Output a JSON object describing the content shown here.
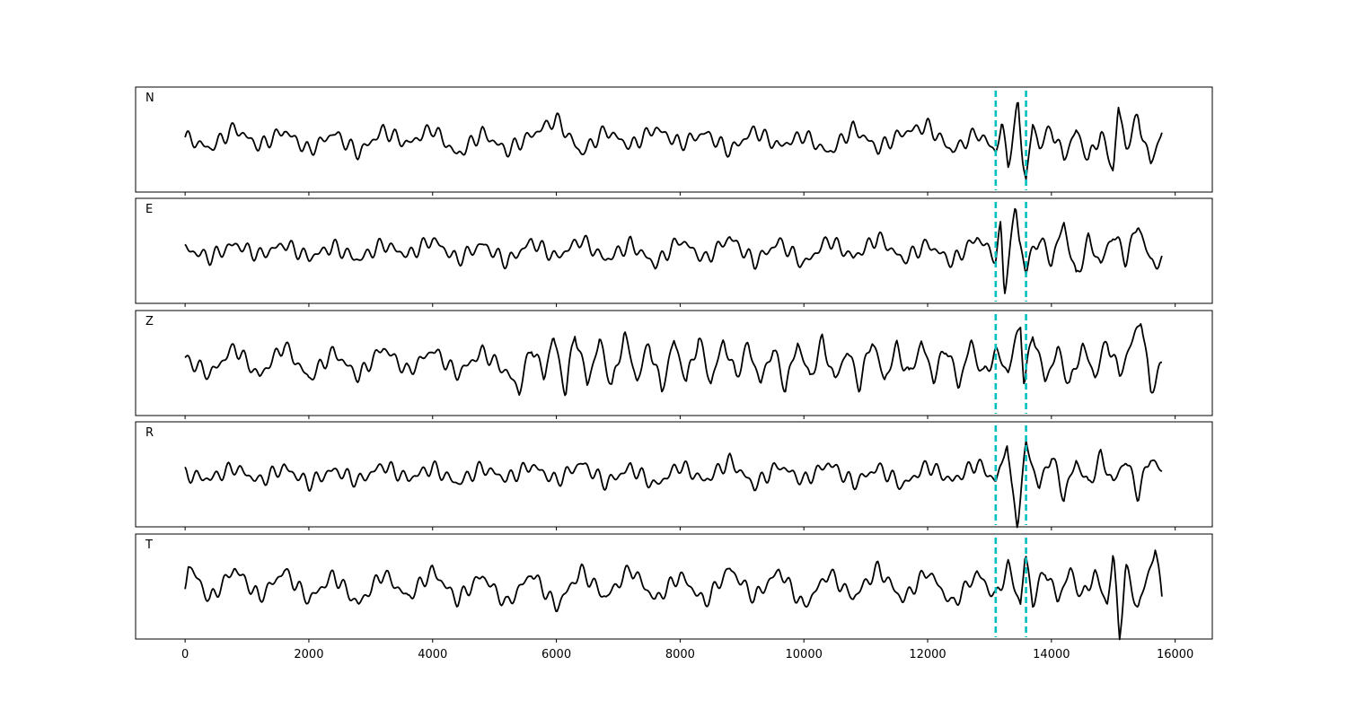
{
  "chart_data": {
    "type": "line",
    "title": "",
    "xlabel": "",
    "ylabel": "",
    "xlim": [
      -800,
      16600
    ],
    "x_ticks": [
      0,
      2000,
      4000,
      6000,
      8000,
      10000,
      12000,
      14000,
      16000
    ],
    "x_tick_labels": [
      "0",
      "2000",
      "4000",
      "6000",
      "8000",
      "10000",
      "12000",
      "14000",
      "16000"
    ],
    "y_ticks_shown": false,
    "grid": false,
    "line_color": "#000000",
    "marker_color": "#00bfbf",
    "markers": [
      {
        "x": 13100,
        "style": "dashed"
      },
      {
        "x": 13590,
        "style": "dashed"
      }
    ],
    "sample_count": 15800,
    "panels": [
      {
        "label": "N",
        "ylim": [
          -2.3,
          2.3
        ],
        "x": [
          0,
          400,
          800,
          1200,
          1600,
          2000,
          2400,
          2800,
          3200,
          3600,
          4000,
          4400,
          4800,
          5200,
          5600,
          6000,
          6400,
          6800,
          7200,
          7600,
          8000,
          8400,
          8800,
          9200,
          9600,
          10000,
          10400,
          10800,
          11200,
          11600,
          12000,
          12400,
          12800,
          13100,
          13200,
          13300,
          13400,
          13460,
          13540,
          13590,
          13700,
          13800,
          14000,
          14200,
          14400,
          14600,
          14800,
          15000,
          15080,
          15200,
          15400,
          15600,
          15800
        ],
        "y": [
          0.1,
          -0.4,
          0.5,
          -0.3,
          0.4,
          -0.5,
          0.3,
          -0.6,
          0.4,
          -0.2,
          0.5,
          -0.7,
          0.3,
          -0.5,
          0.2,
          0.9,
          -0.6,
          0.4,
          -0.3,
          0.5,
          -0.2,
          0.3,
          -0.5,
          0.4,
          -0.3,
          0.2,
          -0.6,
          0.5,
          -0.4,
          0.3,
          0.6,
          -0.5,
          0.3,
          -0.5,
          0.6,
          -1.0,
          0.4,
          1.6,
          -0.9,
          -1.8,
          0.7,
          -0.3,
          0.5,
          -0.8,
          0.4,
          -0.9,
          0.3,
          -1.4,
          1.5,
          -0.4,
          1.0,
          -1.1,
          0.5
        ]
      },
      {
        "label": "E",
        "ylim": [
          -2.3,
          2.3
        ],
        "x": [
          0,
          400,
          800,
          1200,
          1600,
          2000,
          2400,
          2800,
          3200,
          3600,
          4000,
          4400,
          4800,
          5200,
          5600,
          6000,
          6400,
          6800,
          7200,
          7600,
          8000,
          8400,
          8800,
          9200,
          9600,
          10000,
          10400,
          10800,
          11200,
          11600,
          12000,
          12400,
          12800,
          13100,
          13180,
          13240,
          13300,
          13420,
          13480,
          13590,
          13640,
          13800,
          14000,
          14200,
          14400,
          14600,
          14800,
          15000,
          15200,
          15400,
          15600,
          15800
        ],
        "y": [
          0.1,
          -0.3,
          0.3,
          -0.2,
          0.3,
          -0.3,
          0.2,
          -0.4,
          0.3,
          -0.2,
          0.5,
          -0.4,
          0.3,
          -0.5,
          0.4,
          -0.3,
          0.5,
          -0.4,
          0.3,
          -0.6,
          0.5,
          -0.4,
          0.6,
          -0.5,
          0.4,
          -0.6,
          0.5,
          -0.3,
          0.6,
          -0.4,
          0.3,
          -0.5,
          0.6,
          -0.3,
          1.0,
          -1.8,
          -0.5,
          2.0,
          0.5,
          -0.9,
          -0.4,
          0.6,
          -0.5,
          1.2,
          -1.2,
          0.5,
          -0.6,
          0.8,
          -0.4,
          1.2,
          -0.5,
          -0.5
        ]
      },
      {
        "label": "Z",
        "ylim": [
          -2.3,
          2.3
        ],
        "x": [
          0,
          400,
          800,
          1200,
          1600,
          2000,
          2400,
          2800,
          3200,
          3600,
          4000,
          4400,
          4800,
          5200,
          5400,
          5600,
          5800,
          5950,
          6150,
          6300,
          6500,
          6700,
          6900,
          7100,
          7300,
          7500,
          7700,
          7900,
          8100,
          8300,
          8500,
          8700,
          8900,
          9100,
          9300,
          9500,
          9700,
          9900,
          10100,
          10300,
          10500,
          10700,
          10900,
          11100,
          11300,
          11500,
          11700,
          11900,
          12100,
          12300,
          12500,
          12700,
          12900,
          13100,
          13300,
          13500,
          13560,
          13700,
          13900,
          14100,
          14300,
          14500,
          14700,
          14900,
          15100,
          15300,
          15450,
          15600,
          15800
        ],
        "y": [
          0.2,
          -0.5,
          0.7,
          -0.6,
          0.8,
          -0.7,
          0.5,
          -0.6,
          0.7,
          -0.4,
          0.6,
          -0.5,
          0.5,
          -0.4,
          -1.2,
          0.8,
          -0.6,
          1.2,
          -1.3,
          1.4,
          -0.9,
          1.0,
          -1.1,
          1.3,
          -0.8,
          0.9,
          -1.2,
          1.0,
          -0.8,
          1.1,
          -0.9,
          1.0,
          -0.6,
          0.8,
          -0.9,
          0.7,
          -1.1,
          0.9,
          -0.7,
          1.0,
          -0.8,
          0.6,
          -1.0,
          1.1,
          -0.8,
          0.7,
          -0.6,
          0.9,
          -0.7,
          0.8,
          -1.0,
          0.9,
          -0.6,
          0.5,
          -0.4,
          1.8,
          -1.0,
          1.4,
          -0.8,
          0.6,
          -1.0,
          0.8,
          -0.6,
          1.0,
          -0.5,
          0.9,
          2.0,
          -1.2,
          0.0
        ]
      },
      {
        "label": "R",
        "ylim": [
          -2.3,
          2.3
        ],
        "x": [
          0,
          400,
          800,
          1200,
          1600,
          2000,
          2400,
          2800,
          3200,
          3600,
          4000,
          4400,
          4800,
          5200,
          5600,
          6000,
          6400,
          6800,
          7200,
          7600,
          8000,
          8400,
          8800,
          9200,
          9600,
          10000,
          10400,
          10800,
          11200,
          11600,
          12000,
          12400,
          12800,
          13100,
          13200,
          13280,
          13360,
          13450,
          13590,
          13640,
          13800,
          14000,
          14200,
          14400,
          14600,
          14800,
          15000,
          15200,
          15400,
          15600,
          15800
        ],
        "y": [
          0.0,
          -0.2,
          0.3,
          -0.3,
          0.3,
          -0.4,
          0.2,
          -0.3,
          0.4,
          -0.2,
          0.3,
          -0.4,
          0.3,
          -0.2,
          0.4,
          -0.3,
          0.5,
          -0.4,
          0.3,
          -0.5,
          0.4,
          -0.3,
          0.6,
          -0.5,
          0.4,
          -0.3,
          0.5,
          -0.4,
          0.3,
          -0.5,
          0.4,
          -0.3,
          0.5,
          -0.3,
          0.4,
          1.6,
          -0.8,
          -2.1,
          1.3,
          0.9,
          -0.6,
          0.9,
          -1.0,
          0.6,
          -0.5,
          0.8,
          -0.4,
          0.7,
          -0.9,
          0.8,
          0.0
        ]
      },
      {
        "label": "T",
        "ylim": [
          -2.3,
          2.3
        ],
        "x": [
          0,
          50,
          400,
          800,
          1200,
          1600,
          2000,
          2400,
          2800,
          3200,
          3600,
          4000,
          4400,
          4800,
          5200,
          5600,
          6000,
          6400,
          6800,
          7200,
          7600,
          8000,
          8400,
          8800,
          9200,
          9600,
          10000,
          10400,
          10800,
          11200,
          11600,
          12000,
          12400,
          12800,
          13100,
          13300,
          13500,
          13580,
          13700,
          13900,
          14100,
          14300,
          14500,
          14700,
          14900,
          15000,
          15100,
          15200,
          15400,
          15600,
          15680,
          15800
        ],
        "y": [
          0.0,
          1.0,
          -0.6,
          0.8,
          -0.5,
          0.7,
          -0.6,
          0.5,
          -0.8,
          0.6,
          -0.5,
          0.7,
          -0.6,
          0.5,
          -0.8,
          0.6,
          -0.9,
          0.7,
          -0.5,
          0.8,
          -0.6,
          0.5,
          -0.7,
          0.8,
          -0.5,
          0.7,
          -0.9,
          0.6,
          -0.5,
          0.8,
          -0.6,
          0.7,
          -0.8,
          0.6,
          -0.5,
          0.9,
          -0.8,
          1.4,
          -0.7,
          0.8,
          -0.6,
          0.7,
          -0.5,
          0.6,
          -0.8,
          1.4,
          -2.2,
          0.8,
          -1.0,
          0.9,
          1.7,
          -0.8
        ]
      }
    ]
  }
}
